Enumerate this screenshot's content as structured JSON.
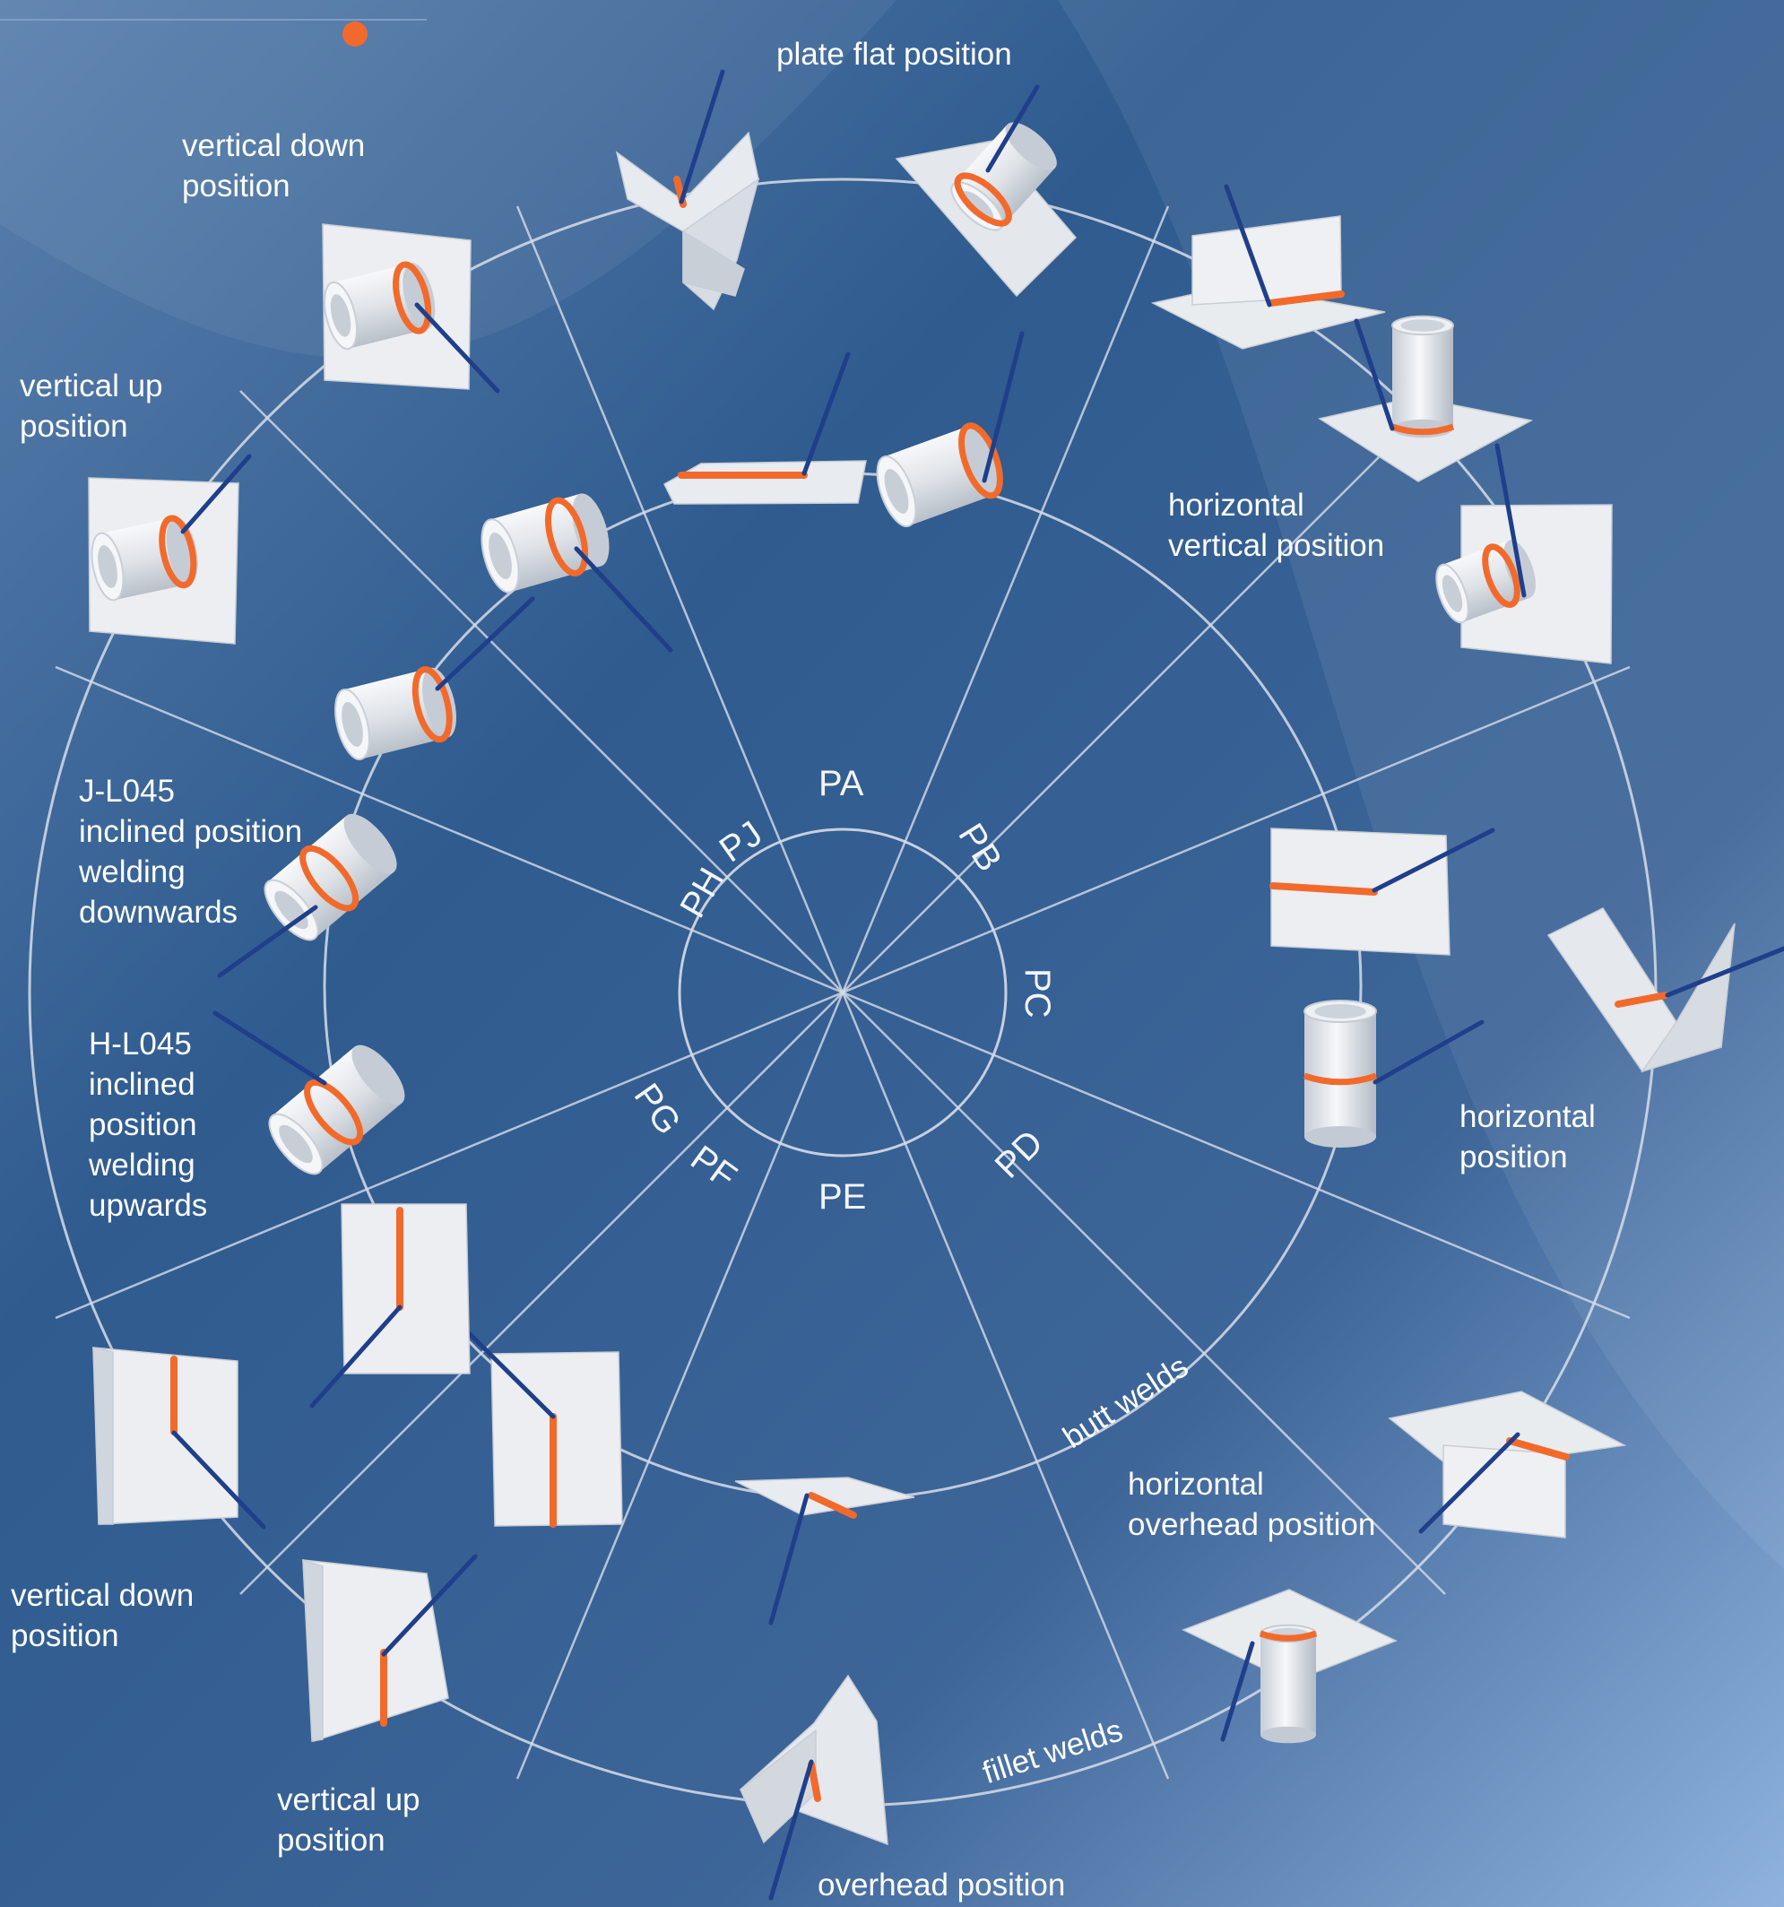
{
  "diagram": {
    "accent_color": "#f26a2b",
    "rod_color": "#1f3f8a",
    "part_color": "#e9ecf0",
    "line_color": "#d7dde8",
    "position_codes": [
      "PA",
      "PB",
      "PC",
      "PD",
      "PE",
      "PF",
      "PG",
      "PH",
      "PJ"
    ],
    "ring_labels": {
      "butt": "butt welds",
      "fillet": "fillet welds"
    },
    "labels": {
      "plate_flat": "plate flat position",
      "vertical_down_top": "vertical down\nposition",
      "vertical_up_top": "vertical up\nposition",
      "horizontal_vertical": "horizontal\nvertical position",
      "j_l045": "J-L045\ninclined position\nwelding\ndownwards",
      "h_l045": "H-L045\ninclined\nposition\nwelding\nupwards",
      "horizontal": "horizontal\nposition",
      "horizontal_overhead": "horizontal\noverhead position",
      "vertical_down_bottom": "vertical down\nposition",
      "vertical_up_bottom": "vertical up\nposition",
      "overhead": "overhead position"
    }
  }
}
